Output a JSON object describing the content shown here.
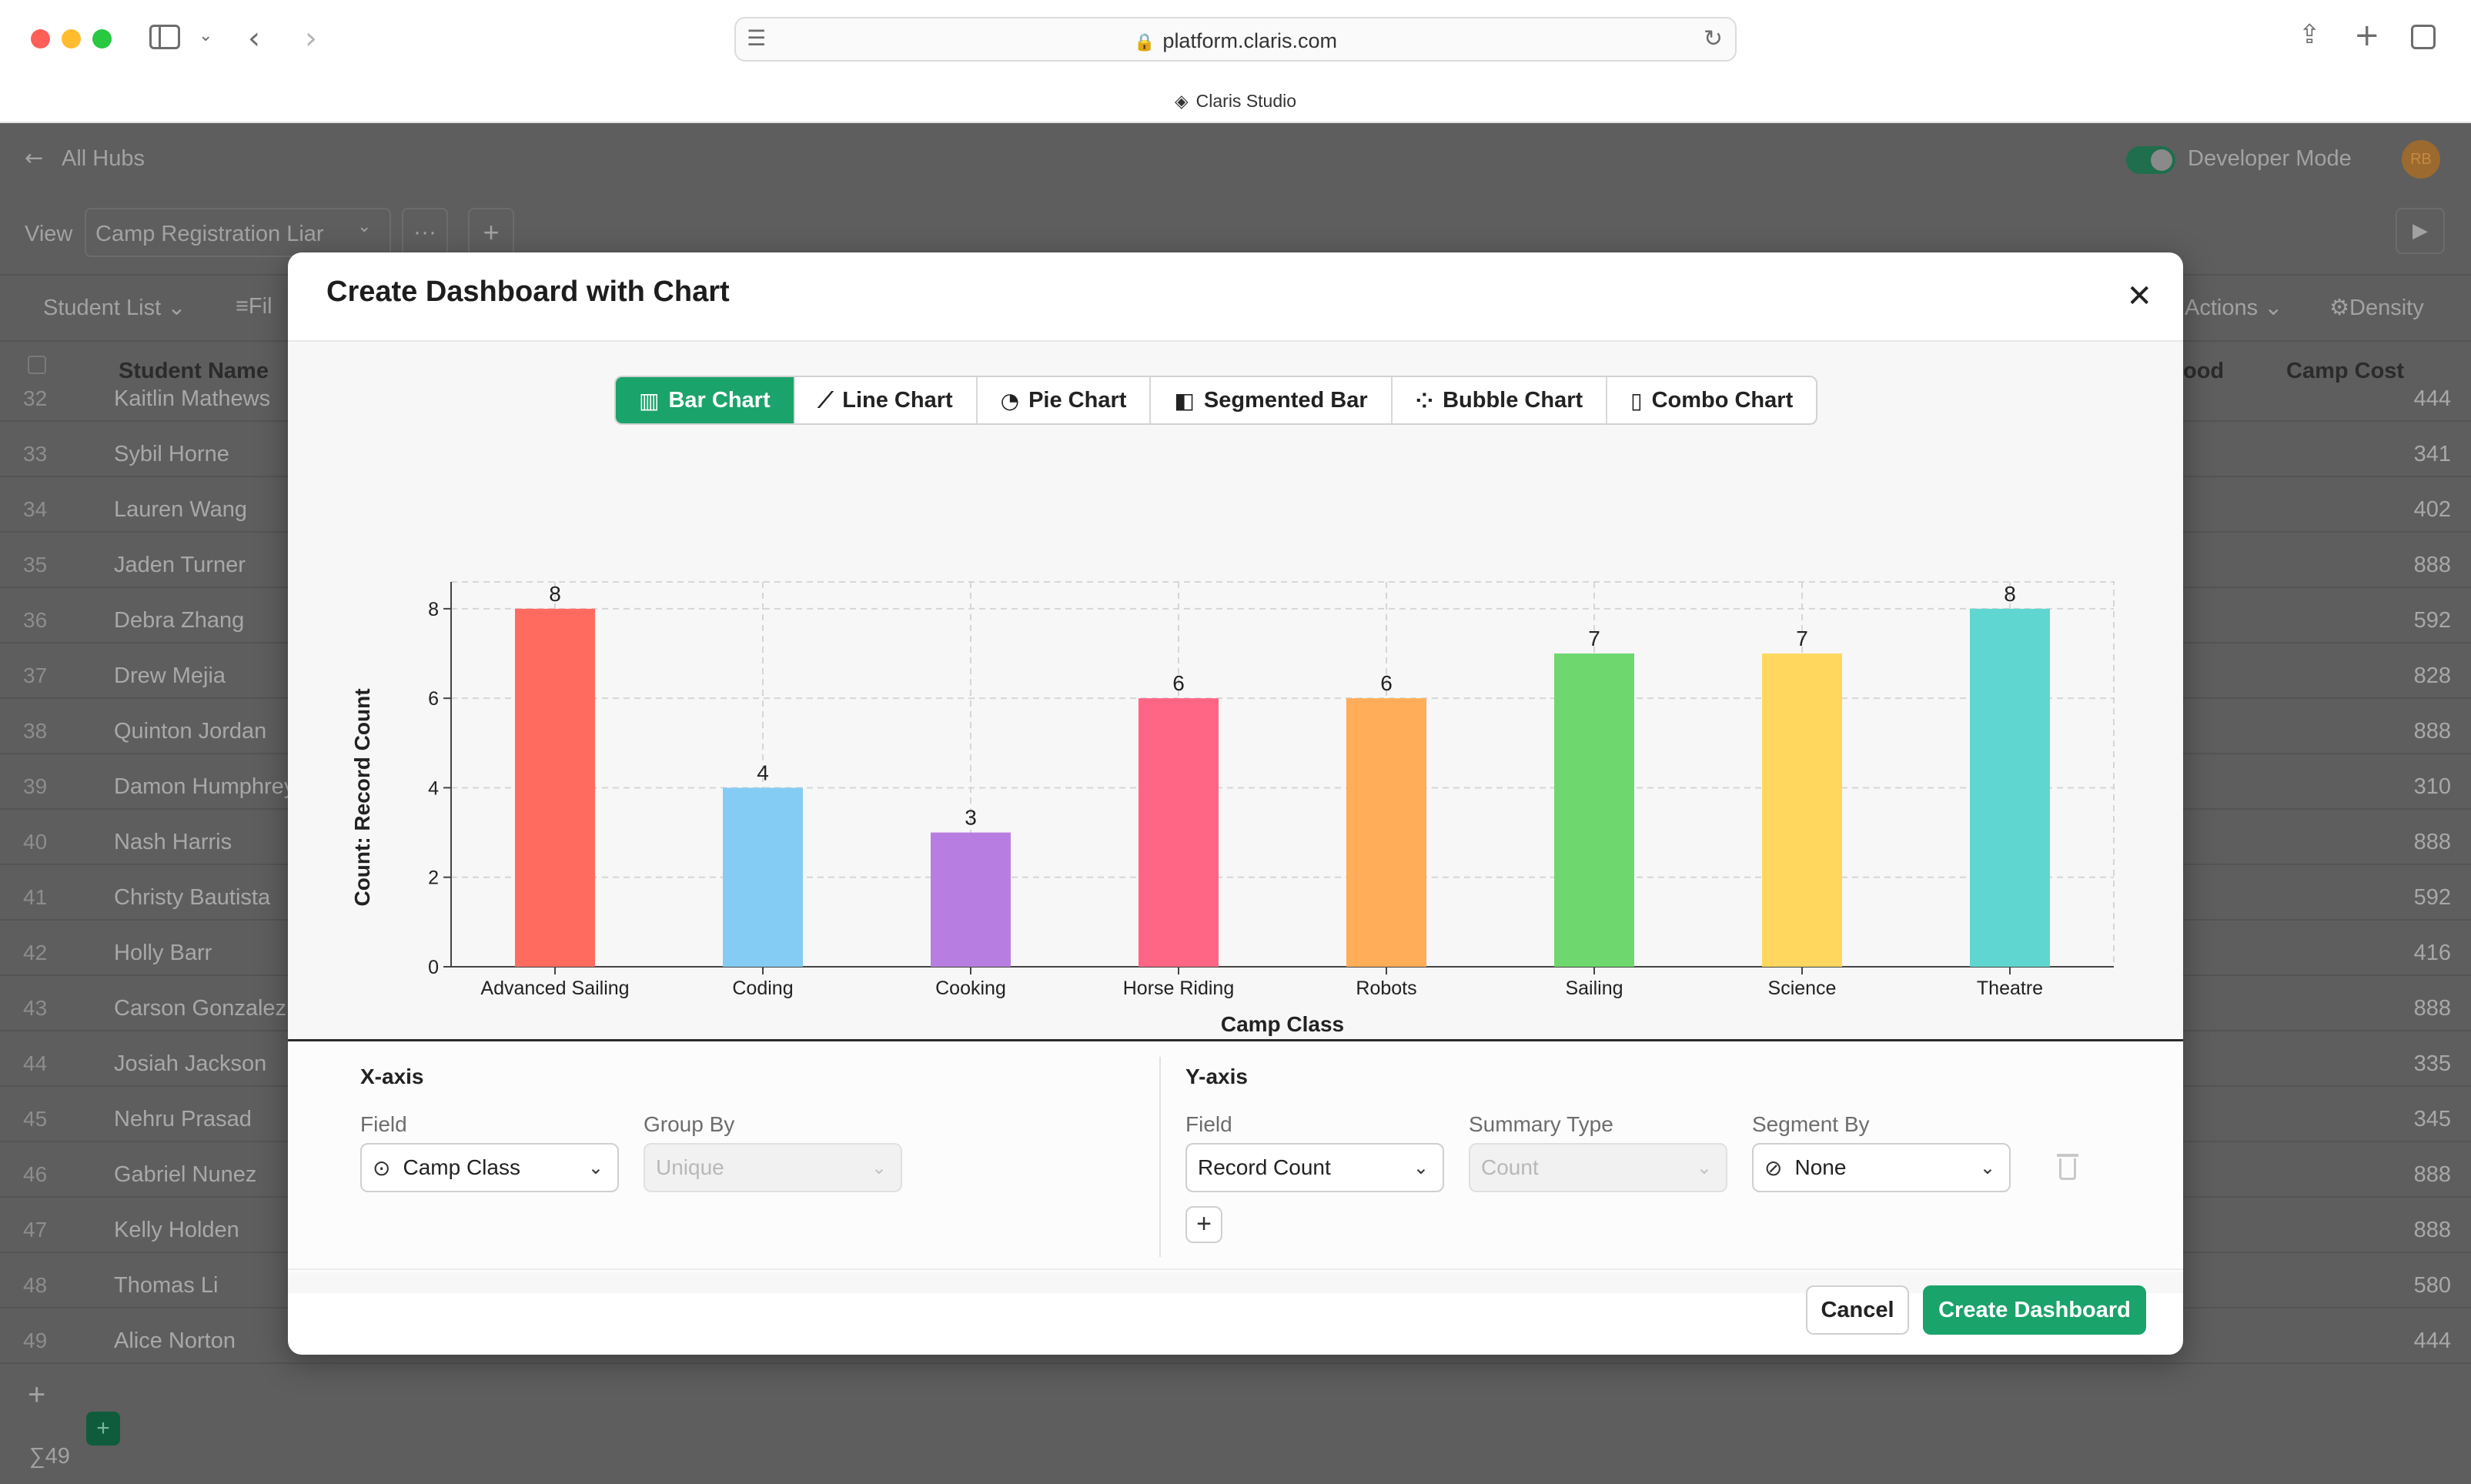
{
  "browser": {
    "url": "platform.claris.com",
    "tab_title": "Claris Studio"
  },
  "app": {
    "back_label": "All Hubs",
    "developer_mode_label": "Developer Mode",
    "avatar_initials": "RB",
    "view_label": "View",
    "view_name": "Camp Registration Liar",
    "list_name": "Student List",
    "filter_label": "Fil",
    "actions_label": "Actions",
    "density_label": "Density",
    "col_student_name": "Student Name",
    "col_food": "ood",
    "col_camp_cost": "Camp Cost",
    "footer_count": "∑49",
    "rows": [
      {
        "num": "32",
        "name": "Kaitlin Mathews",
        "cost": "444"
      },
      {
        "num": "33",
        "name": "Sybil Horne",
        "cost": "341"
      },
      {
        "num": "34",
        "name": "Lauren Wang",
        "cost": "402"
      },
      {
        "num": "35",
        "name": "Jaden Turner",
        "cost": "888"
      },
      {
        "num": "36",
        "name": "Debra Zhang",
        "cost": "592"
      },
      {
        "num": "37",
        "name": "Drew Mejia",
        "cost": "828"
      },
      {
        "num": "38",
        "name": "Quinton Jordan",
        "cost": "888"
      },
      {
        "num": "39",
        "name": "Damon Humphrey",
        "cost": "310"
      },
      {
        "num": "40",
        "name": "Nash Harris",
        "cost": "888"
      },
      {
        "num": "41",
        "name": "Christy Bautista",
        "cost": "592"
      },
      {
        "num": "42",
        "name": "Holly Barr",
        "cost": "416"
      },
      {
        "num": "43",
        "name": "Carson Gonzalez",
        "cost": "888"
      },
      {
        "num": "44",
        "name": "Josiah Jackson",
        "cost": "335"
      },
      {
        "num": "45",
        "name": "Nehru Prasad",
        "cost": "345"
      },
      {
        "num": "46",
        "name": "Gabriel Nunez",
        "cost": "888"
      },
      {
        "num": "47",
        "name": "Kelly Holden",
        "cost": "888"
      },
      {
        "num": "48",
        "name": "Thomas Li",
        "cost": "580"
      },
      {
        "num": "49",
        "name": "Alice Norton",
        "cost": "444"
      }
    ]
  },
  "modal": {
    "title": "Create Dashboard with Chart",
    "chart_tabs": [
      {
        "label": "Bar Chart",
        "icon": "bar-chart-icon",
        "active": true
      },
      {
        "label": "Line Chart",
        "icon": "line-chart-icon",
        "active": false
      },
      {
        "label": "Pie Chart",
        "icon": "pie-chart-icon",
        "active": false
      },
      {
        "label": "Segmented Bar",
        "icon": "segmented-bar-icon",
        "active": false
      },
      {
        "label": "Bubble Chart",
        "icon": "bubble-chart-icon",
        "active": false
      },
      {
        "label": "Combo Chart",
        "icon": "combo-chart-icon",
        "active": false
      }
    ],
    "x_axis": {
      "title": "X-axis",
      "field_label": "Field",
      "field_value": "Camp Class",
      "group_by_label": "Group By",
      "group_by_value": "Unique"
    },
    "y_axis": {
      "title": "Y-axis",
      "field_label": "Field",
      "field_value": "Record Count",
      "summary_label": "Summary Type",
      "summary_value": "Count",
      "segment_label": "Segment By",
      "segment_value": "None"
    },
    "cancel_label": "Cancel",
    "create_label": "Create Dashboard",
    "accent_color": "#1aa36b"
  },
  "chart_data": {
    "type": "bar",
    "categories": [
      "Advanced Sailing",
      "Coding",
      "Cooking",
      "Horse Riding",
      "Robots",
      "Sailing",
      "Science",
      "Theatre"
    ],
    "values": [
      8,
      4,
      3,
      6,
      6,
      7,
      7,
      8
    ],
    "colors": [
      "#ff6b5f",
      "#84ccf3",
      "#b77de0",
      "#ff6584",
      "#ffad58",
      "#6ed86f",
      "#ffd75f",
      "#5fd6cf"
    ],
    "xlabel": "Camp Class",
    "ylabel": "Count: Record Count",
    "ylim": [
      0,
      8.6
    ],
    "yticks": [
      0,
      2,
      4,
      6,
      8
    ],
    "grid": true,
    "data_labels": true
  }
}
